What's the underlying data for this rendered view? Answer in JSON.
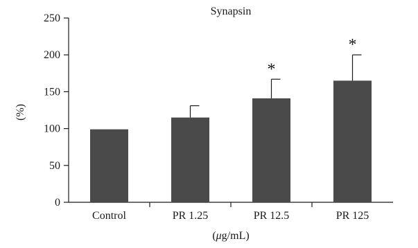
{
  "chart_data": {
    "type": "bar",
    "title": "Synapsin",
    "xlabel": "(μg/mL)",
    "ylabel": "(%)",
    "ylim": [
      0,
      250
    ],
    "yticks": [
      0,
      50,
      100,
      150,
      200,
      250
    ],
    "categories": [
      "Control",
      "PR 1.25",
      "PR 12.5",
      "PR 125"
    ],
    "values": [
      99,
      115,
      141,
      165
    ],
    "error_plus": [
      0,
      16,
      26,
      35
    ],
    "significance": [
      "",
      "",
      "*",
      "*"
    ],
    "grid": false,
    "colors": {
      "bar": "#4a4a4a",
      "axis": "#1a1a1a"
    }
  }
}
